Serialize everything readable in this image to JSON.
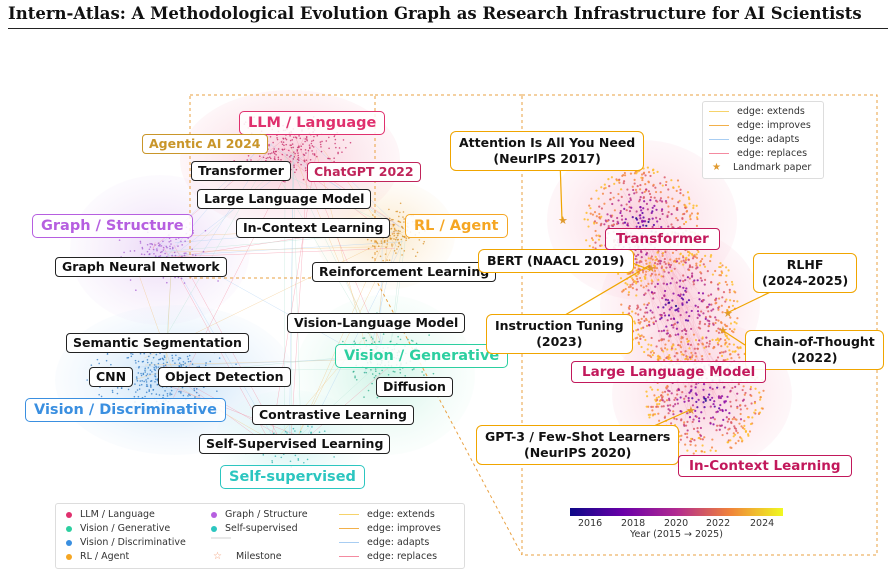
{
  "title": "Intern-Atlas: A Methodological Evolution Graph as Research Infrastructure for AI Scientists",
  "left_panel": {
    "clusters": [
      {
        "id": "llm",
        "label": "LLM / Language",
        "color": "#e0306e"
      },
      {
        "id": "graph",
        "label": "Graph / Structure",
        "color": "#b65fe0"
      },
      {
        "id": "rl",
        "label": "RL / Agent",
        "color": "#f5a623"
      },
      {
        "id": "visgen",
        "label": "Vision / Generative",
        "color": "#2ccfa0"
      },
      {
        "id": "visdis",
        "label": "Vision / Discriminative",
        "color": "#3a8fe0"
      },
      {
        "id": "ssl",
        "label": "Self-supervised",
        "color": "#2cc6c0"
      }
    ],
    "milestones": [
      {
        "id": "agentic",
        "label": "Agentic AI 2024",
        "color": "#c9962a"
      },
      {
        "id": "chatgpt",
        "label": "ChatGPT 2022",
        "color": "#c0245a"
      }
    ],
    "methods": {
      "transformer": "Transformer",
      "llm": "Large Language Model",
      "icl": "In-Context Learning",
      "gnn": "Graph Neural Network",
      "rl": "Reinforcement Learning",
      "vlm": "Vision-Language Model",
      "seg": "Semantic Segmentation",
      "cnn": "CNN",
      "det": "Object Detection",
      "diffusion": "Diffusion",
      "contrastive": "Contrastive Learning",
      "ssl": "Self-Supervised Learning"
    },
    "legend": {
      "llm": "LLM / Language",
      "visgen": "Vision / Generative",
      "visdis": "Vision / Discriminative",
      "rl": "RL / Agent",
      "graph": "Graph / Structure",
      "ssl": "Self-supervised",
      "milestone": "Milestone",
      "extends": "edge: extends",
      "improves": "edge: improves",
      "adapts": "edge: adapts",
      "replaces": "edge: replaces"
    }
  },
  "right_panel": {
    "legend": {
      "extends": "edge: extends",
      "improves": "edge: improves",
      "adapts": "edge: adapts",
      "replaces": "edge: replaces",
      "landmark": "Landmark paper"
    },
    "clusters": {
      "transformer": "Transformer",
      "llm": "Large Language Model",
      "icl": "In-Context Learning"
    },
    "annotations": {
      "attention": "Attention Is All You Need\n(NeurIPS 2017)",
      "bert": "BERT (NAACL 2019)",
      "instruct": "Instruction Tuning\n(2023)",
      "gpt3": "GPT-3 / Few-Shot Learners\n(NeurIPS 2020)",
      "rlhf": "RLHF\n(2024-2025)",
      "cot": "Chain-of-Thought\n(2022)"
    },
    "colorbar": {
      "ticks": [
        "2016",
        "2018",
        "2020",
        "2022",
        "2024"
      ],
      "label": "Year (2015 → 2025)"
    }
  }
}
